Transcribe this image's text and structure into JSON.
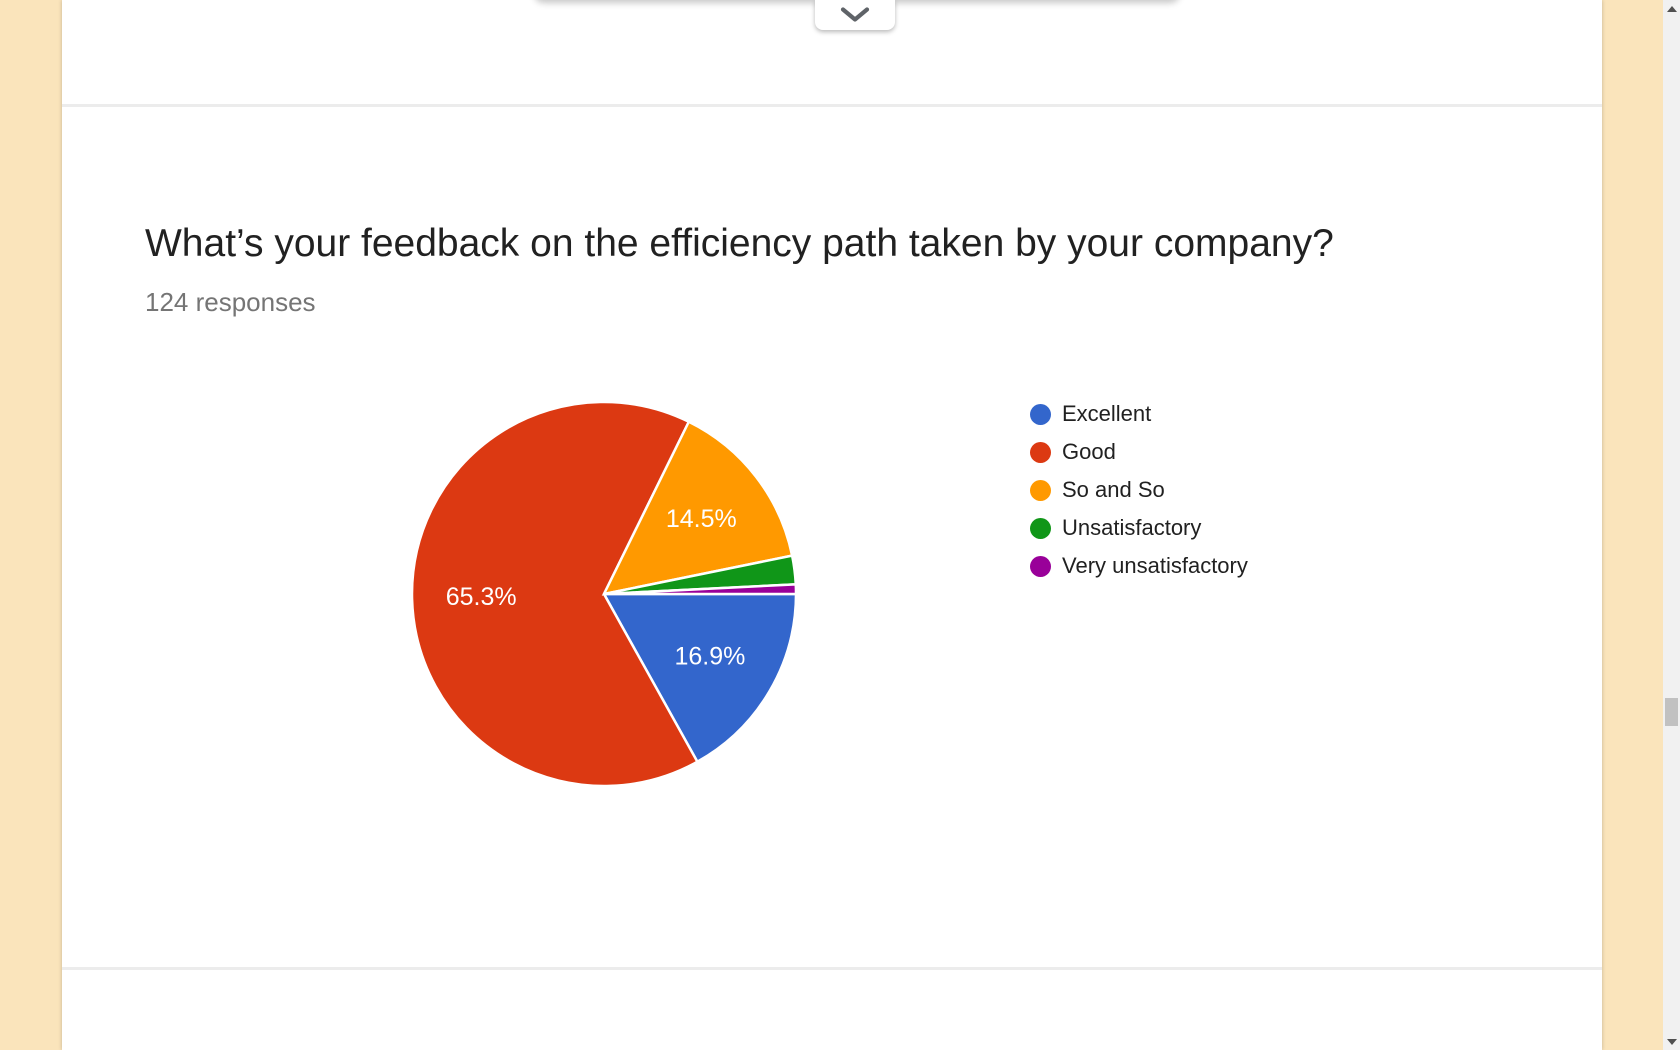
{
  "theme": {
    "page_background": "#fae4bb",
    "card_background": "#ffffff",
    "divider_color": "#ececec",
    "title_color": "#212121",
    "subtitle_color": "#757575",
    "chevron_color": "#5f6368"
  },
  "question": {
    "title": "What’s your feedback on the efficiency path taken by your company?",
    "responses_count": "124 responses"
  },
  "chart_data": {
    "type": "pie",
    "title": "What’s your feedback on the efficiency path taken by your company?",
    "total_responses": 124,
    "categories": [
      "Excellent",
      "Good",
      "So and So",
      "Unsatisfactory",
      "Very unsatisfactory"
    ],
    "values": [
      16.9,
      65.3,
      14.5,
      2.4,
      0.8
    ],
    "colors": [
      "#3366cc",
      "#dc3912",
      "#ff9900",
      "#109618",
      "#990099"
    ],
    "slice_labels": [
      "16.9%",
      "65.3%",
      "14.5%",
      null,
      null
    ],
    "label_color": "#ffffff",
    "legend_position": "right",
    "start_angle": "east",
    "direction": "clockwise"
  }
}
